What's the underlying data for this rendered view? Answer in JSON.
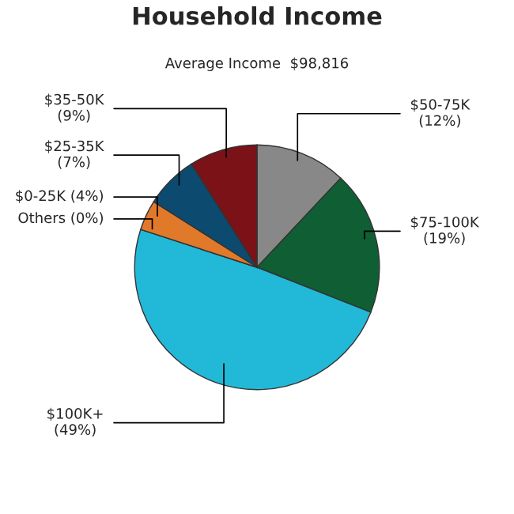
{
  "chart_data": {
    "type": "pie",
    "title": "Household Income",
    "subtitle": "Average Income  $98,816",
    "categories": [
      "$50-75K",
      "$75-100K",
      "$100K+",
      "Others",
      "$0-25K",
      "$25-35K",
      "$35-50K"
    ],
    "values": [
      12,
      19,
      49,
      0,
      4,
      7,
      9
    ],
    "value_labels": [
      "(12%)",
      "(19%)",
      "(49%)",
      "(0%)",
      "(4%)",
      "(7%)",
      "(9%)"
    ],
    "colors": [
      "#888888",
      "#0f5e34",
      "#22b8d8",
      "#a0a0a0",
      "#e07a2a",
      "#0d4a70",
      "#7a1218"
    ]
  }
}
